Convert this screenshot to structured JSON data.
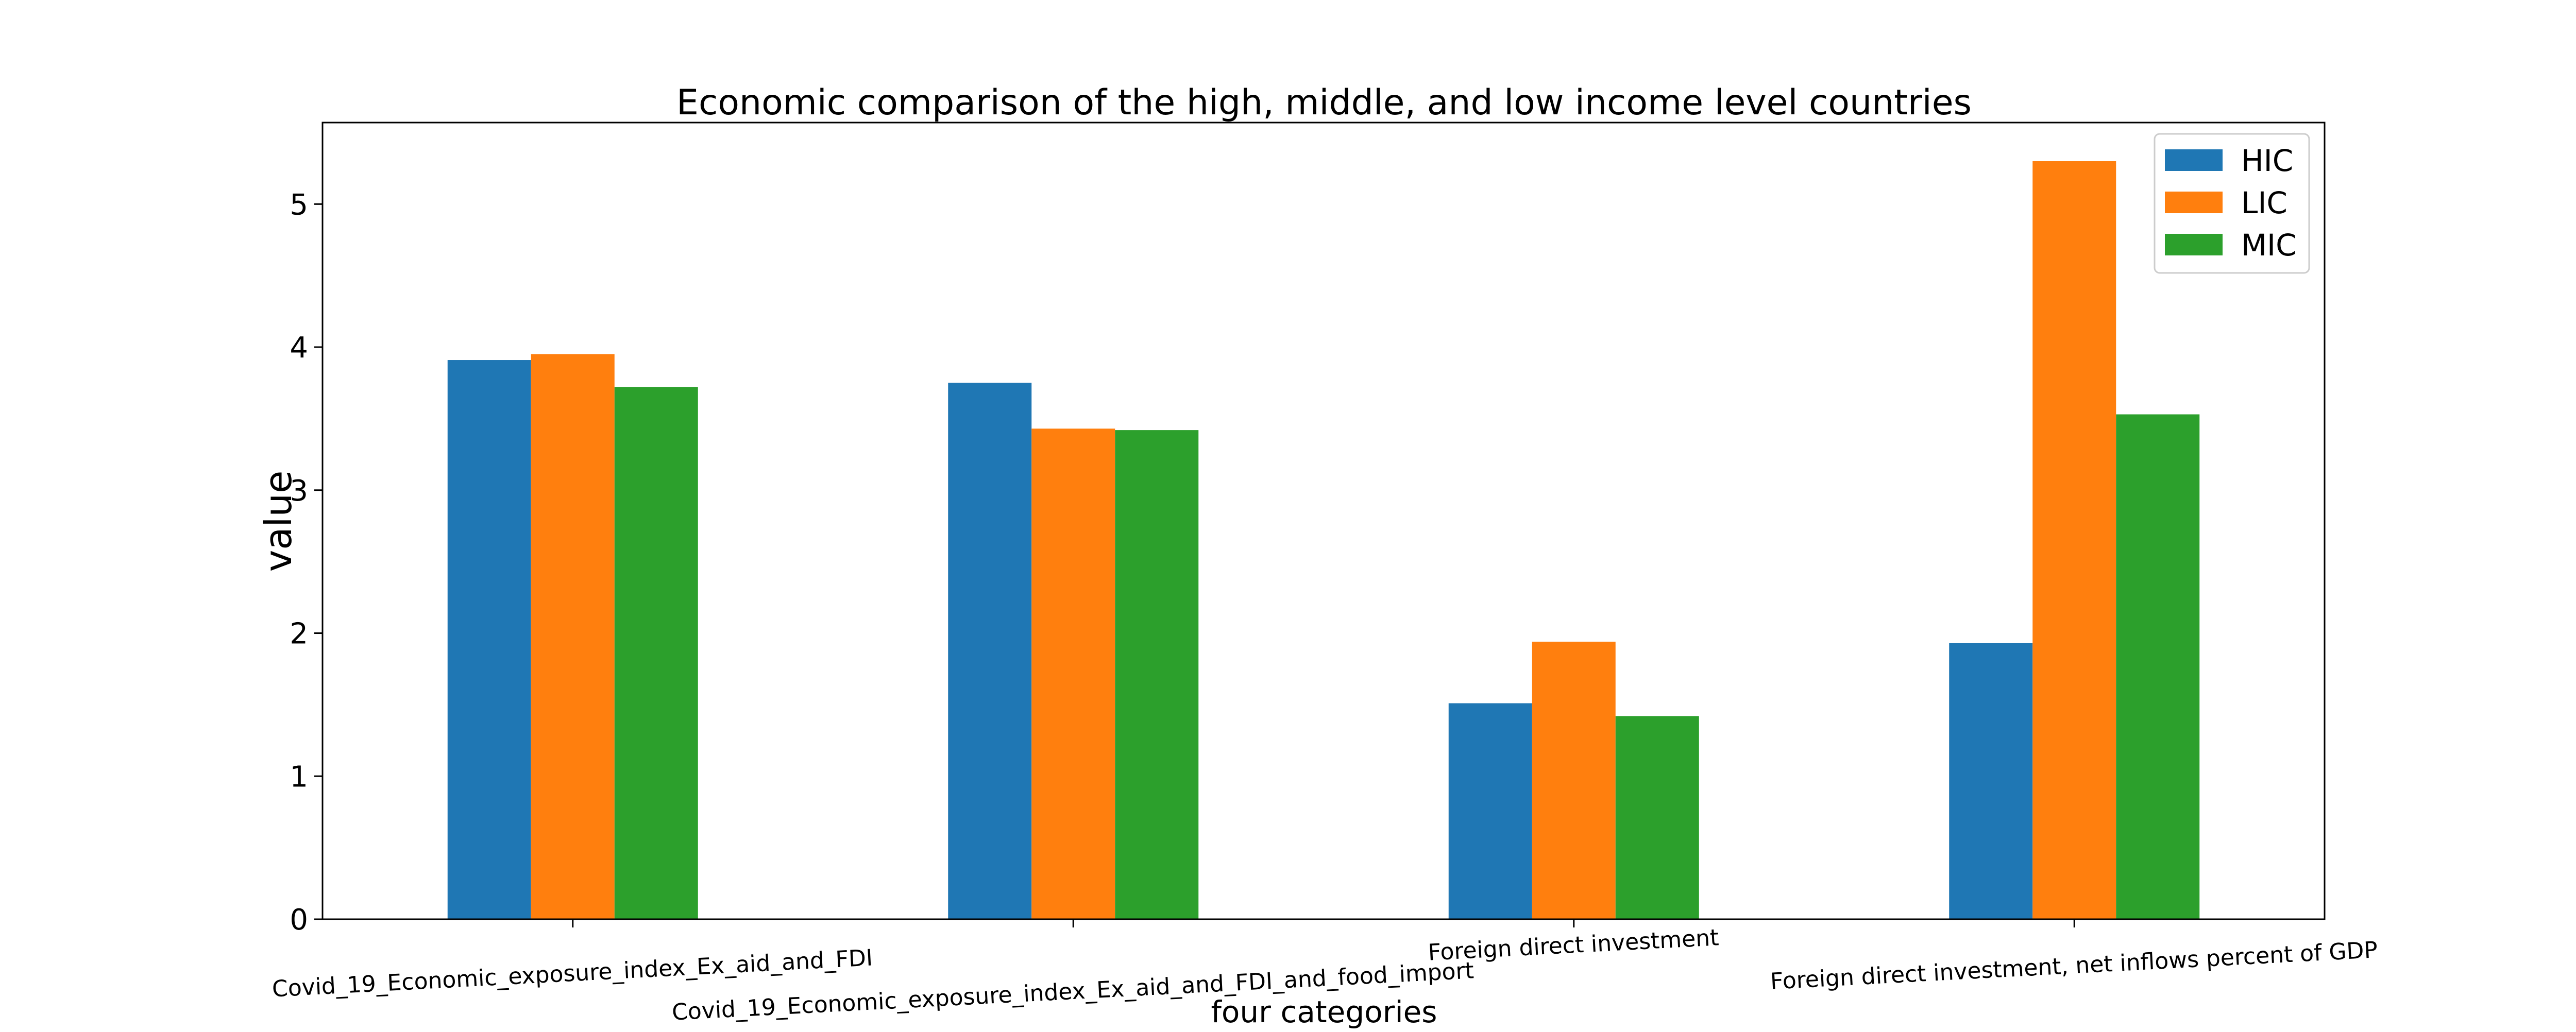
{
  "chart_data": {
    "type": "bar",
    "title": "Economic comparison of the high, middle, and low income level countries",
    "xlabel": "four categories",
    "ylabel": "value",
    "categories": [
      "Covid_19_Economic_exposure_index_Ex_aid_and_FDI",
      "Covid_19_Economic_exposure_index_Ex_aid_and_FDI_and_food_import",
      "Foreign direct investment",
      "Foreign direct investment, net inflows percent of GDP"
    ],
    "series": [
      {
        "name": "HIC",
        "color": "#1f77b4",
        "values": [
          3.91,
          3.75,
          1.51,
          1.93
        ]
      },
      {
        "name": "LIC",
        "color": "#ff7f0e",
        "values": [
          3.95,
          3.43,
          1.94,
          5.3
        ]
      },
      {
        "name": "MIC",
        "color": "#2ca02c",
        "values": [
          3.72,
          3.42,
          1.42,
          3.53
        ]
      }
    ],
    "ylim": [
      0,
      5.57
    ],
    "yticks": [
      "0",
      "1",
      "2",
      "3",
      "4",
      "5"
    ],
    "grid": false,
    "legend": "top-right"
  }
}
